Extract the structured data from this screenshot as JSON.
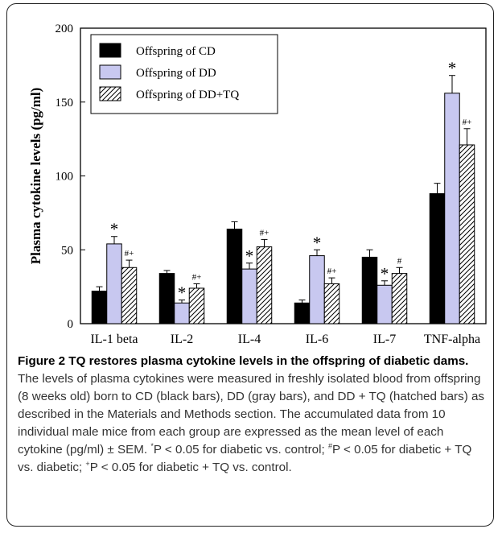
{
  "chart_data": {
    "type": "bar",
    "categories": [
      "IL-1 beta",
      "IL-2",
      "IL-4",
      "IL-6",
      "IL-7",
      "TNF-alpha"
    ],
    "ylabel": "Plasma cytokine levels (pg/ml)",
    "xlabel": "",
    "ylim": [
      0,
      200
    ],
    "yticks": [
      0,
      50,
      100,
      150,
      200
    ],
    "legend_position": "top-left",
    "series": [
      {
        "name": "Offspring of CD",
        "fill": "#000000",
        "pattern": "solid",
        "values": [
          22,
          34,
          64,
          14,
          45,
          88
        ],
        "errors": [
          3,
          2,
          5,
          2,
          5,
          7
        ],
        "annotations": [
          "",
          "",
          "",
          "",
          "",
          ""
        ]
      },
      {
        "name": "Offspring of DD",
        "fill": "#c8c8f0",
        "pattern": "solid",
        "values": [
          54,
          14,
          37,
          46,
          26,
          156
        ],
        "errors": [
          5,
          2,
          4,
          4,
          3,
          12
        ],
        "annotations": [
          "*",
          "*",
          "*",
          "*",
          "*",
          "*"
        ]
      },
      {
        "name": "Offspring of DD+TQ",
        "fill": "#ffffff",
        "pattern": "hatch",
        "values": [
          38,
          24,
          52,
          27,
          34,
          121
        ],
        "errors": [
          5,
          3,
          5,
          4,
          4,
          11
        ],
        "annotations": [
          "#+",
          "#+",
          "#+",
          "#+",
          "#",
          "#+"
        ]
      }
    ]
  },
  "caption": {
    "title": "Figure 2 TQ restores plasma cytokine levels in the offspring of diabetic dams.",
    "body_1": " The levels of plasma cytokines were measured in freshly isolated blood from offspring (8 weeks old) born to CD (black bars), DD (gray bars), and DD + TQ (hatched bars) as described in the Materials and Methods section. The accumulated data from 10 individual male mice from each group are expressed as the mean level of each cytokine (pg/ml) ± SEM. ",
    "sup_star": "*",
    "body_2": "P < 0.05 for diabetic vs. control; ",
    "sup_hash": "#",
    "body_3": "P < 0.05 for diabetic + TQ vs. diabetic; ",
    "sup_plus": "+",
    "body_4": "P < 0.05 for diabetic + TQ vs. control."
  },
  "colors": {
    "frame": "#222222",
    "dd_bar": "#c8c8f0",
    "cd_bar": "#000000"
  }
}
